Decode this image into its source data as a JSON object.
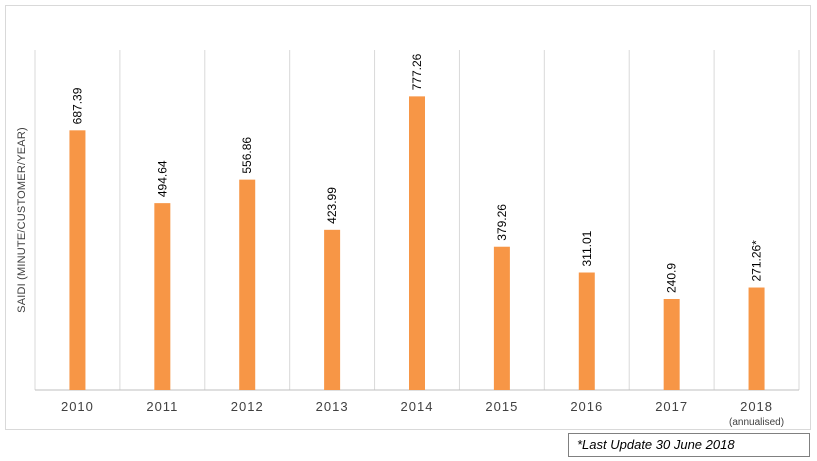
{
  "chart_data": {
    "type": "bar",
    "categories": [
      "2010",
      "2011",
      "2012",
      "2013",
      "2014",
      "2015",
      "2016",
      "2017",
      "2018"
    ],
    "category_sublabels": [
      "",
      "",
      "",
      "",
      "",
      "",
      "",
      "",
      "(annualised)"
    ],
    "values": [
      687.39,
      494.64,
      556.86,
      423.99,
      777.26,
      379.26,
      311.01,
      240.9,
      271.26
    ],
    "data_labels": [
      "687.39",
      "494.64",
      "556.86",
      "423.99",
      "777.26",
      "379.26",
      "311.01",
      "240.9",
      "271.26*"
    ],
    "ylabel": "SAIDI (MINUTE/CUSTOMER/YEAR)",
    "xlabel": "",
    "ylim": [
      0,
      900
    ],
    "grid": "vertical",
    "bar_color": "#f79646"
  },
  "footnote": "*Last Update 30 June 2018"
}
